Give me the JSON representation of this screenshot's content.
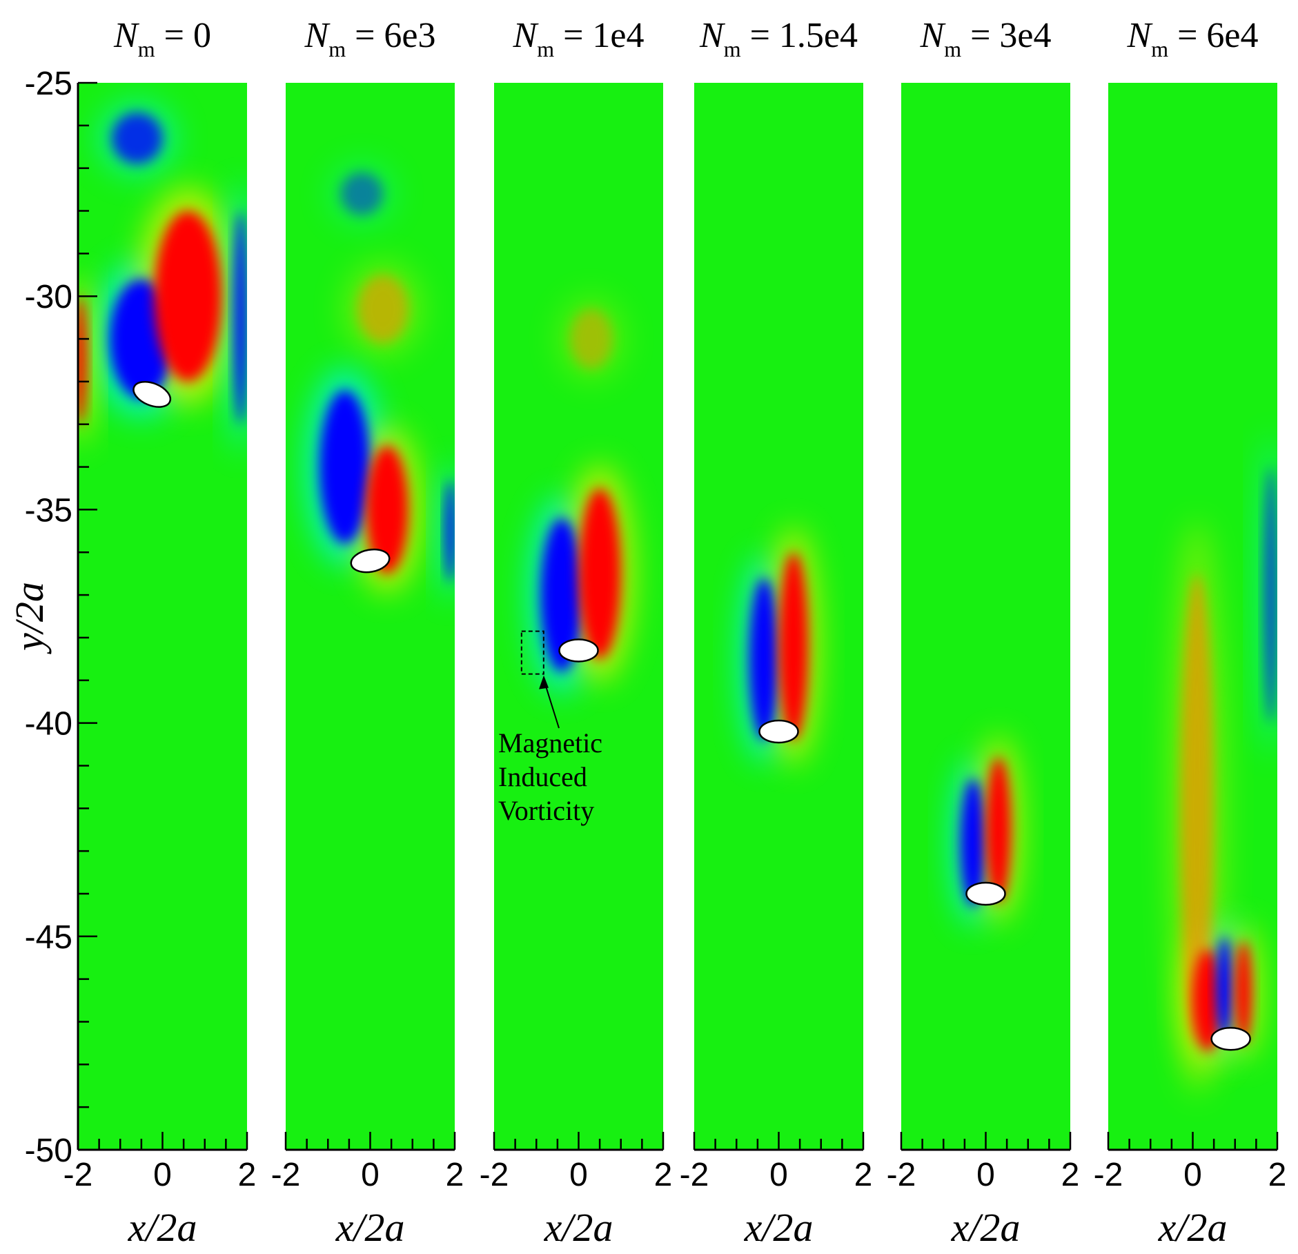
{
  "chart_data": {
    "type": "heatmap",
    "description_free": true,
    "shared_y_axis": {
      "label_var": "y",
      "label_rest": "/2",
      "label_a": "a",
      "range": [
        -50,
        -25
      ],
      "ticks": [
        -25,
        -30,
        -35,
        -40,
        -45,
        -50
      ],
      "tick_labels": [
        "-25",
        "-30",
        "-35",
        "-40",
        "-45",
        "-50"
      ]
    },
    "x_axis": {
      "label_var": "x",
      "label_rest": "/2",
      "label_a": "a",
      "range": [
        -2,
        2
      ],
      "ticks": [
        -2,
        0,
        2
      ],
      "tick_labels": [
        "-2",
        "0",
        "2"
      ]
    },
    "colors": {
      "background_field": "#17f011",
      "positive_vorticity": "#ff0000",
      "negative_vorticity": "#0000ff",
      "cyan": "#00f0f0",
      "yellow": "#f0f000",
      "orange": "#ff8800"
    },
    "panels": [
      {
        "title_var": "N",
        "title_sub": "m",
        "title_value": " = 0",
        "Nm": 0,
        "particle": {
          "x": -0.25,
          "y": -32.3,
          "tilt_deg": 22
        },
        "wake_features": [
          {
            "sign": "negative",
            "x": -0.6,
            "y": -26.3,
            "rx": 0.6,
            "ry": 0.6,
            "strength": 0.7
          },
          {
            "sign": "negative",
            "x": -0.5,
            "y": -31.0,
            "rx": 0.75,
            "ry": 1.4,
            "strength": 1
          },
          {
            "sign": "positive",
            "x": 0.6,
            "y": -30.0,
            "rx": 0.8,
            "ry": 2.0,
            "strength": 1
          },
          {
            "sign": "positive",
            "x": -1.95,
            "y": -31.5,
            "rx": 0.15,
            "ry": 1.5,
            "strength": 1
          },
          {
            "sign": "negative",
            "x": 1.85,
            "y": -30.5,
            "rx": 0.15,
            "ry": 2.5,
            "strength": 0.9
          }
        ]
      },
      {
        "title_var": "N",
        "title_sub": "m",
        "title_value": " = 6e3",
        "Nm": 6000,
        "particle": {
          "x": 0.0,
          "y": -36.2,
          "tilt_deg": -10
        },
        "wake_features": [
          {
            "sign": "negative",
            "x": -0.2,
            "y": -27.6,
            "rx": 0.5,
            "ry": 0.5,
            "strength": 0.35
          },
          {
            "sign": "positive",
            "x": 0.3,
            "y": -30.3,
            "rx": 0.6,
            "ry": 0.8,
            "strength": 0.45
          },
          {
            "sign": "negative",
            "x": -0.6,
            "y": -34.0,
            "rx": 0.6,
            "ry": 1.8,
            "strength": 1
          },
          {
            "sign": "positive",
            "x": 0.4,
            "y": -35.0,
            "rx": 0.5,
            "ry": 1.5,
            "strength": 1
          },
          {
            "sign": "negative",
            "x": 1.9,
            "y": -35.5,
            "rx": 0.12,
            "ry": 1.2,
            "strength": 0.9
          }
        ]
      },
      {
        "title_var": "N",
        "title_sub": "m",
        "title_value": " = 1e4",
        "Nm": 10000,
        "particle": {
          "x": 0.0,
          "y": -38.3,
          "tilt_deg": 0
        },
        "annotation": {
          "lines": [
            "Magnetic",
            "Induced",
            "Vorticity"
          ]
        },
        "wake_features": [
          {
            "sign": "positive",
            "x": 0.3,
            "y": -31.0,
            "rx": 0.5,
            "ry": 0.7,
            "strength": 0.35
          },
          {
            "sign": "negative",
            "x": -0.4,
            "y": -37.0,
            "rx": 0.5,
            "ry": 1.8,
            "strength": 1
          },
          {
            "sign": "positive",
            "x": 0.5,
            "y": -36.5,
            "rx": 0.5,
            "ry": 2.0,
            "strength": 1
          }
        ]
      },
      {
        "title_var": "N",
        "title_sub": "m",
        "title_value": " = 1.5e4",
        "Nm": 15000,
        "particle": {
          "x": 0.0,
          "y": -40.2,
          "tilt_deg": 0
        },
        "wake_features": [
          {
            "sign": "negative",
            "x": -0.35,
            "y": -38.5,
            "rx": 0.35,
            "ry": 1.9,
            "strength": 1
          },
          {
            "sign": "positive",
            "x": 0.35,
            "y": -38.2,
            "rx": 0.35,
            "ry": 2.2,
            "strength": 1
          }
        ]
      },
      {
        "title_var": "N",
        "title_sub": "m",
        "title_value": " = 3e4",
        "Nm": 30000,
        "particle": {
          "x": 0.0,
          "y": -44.0,
          "tilt_deg": 0
        },
        "wake_features": [
          {
            "sign": "negative",
            "x": -0.3,
            "y": -42.8,
            "rx": 0.3,
            "ry": 1.5,
            "strength": 1
          },
          {
            "sign": "positive",
            "x": 0.3,
            "y": -42.5,
            "rx": 0.3,
            "ry": 1.7,
            "strength": 1
          }
        ]
      },
      {
        "title_var": "N",
        "title_sub": "m",
        "title_value": " = 6e4",
        "Nm": 60000,
        "particle": {
          "x": 0.9,
          "y": -47.4,
          "tilt_deg": 0
        },
        "wake_features": [
          {
            "sign": "positive",
            "x": 0.1,
            "y": -42.0,
            "rx": 0.4,
            "ry": 5.5,
            "strength": 0.55
          },
          {
            "sign": "positive",
            "x": 0.35,
            "y": -46.5,
            "rx": 0.35,
            "ry": 1.2,
            "strength": 1
          },
          {
            "sign": "negative",
            "x": 0.75,
            "y": -46.2,
            "rx": 0.2,
            "ry": 1.2,
            "strength": 1
          },
          {
            "sign": "positive",
            "x": 1.2,
            "y": -46.3,
            "rx": 0.2,
            "ry": 1.2,
            "strength": 1
          },
          {
            "sign": "negative",
            "x": 1.85,
            "y": -37.0,
            "rx": 0.15,
            "ry": 3.0,
            "strength": 0.6
          }
        ]
      }
    ]
  }
}
